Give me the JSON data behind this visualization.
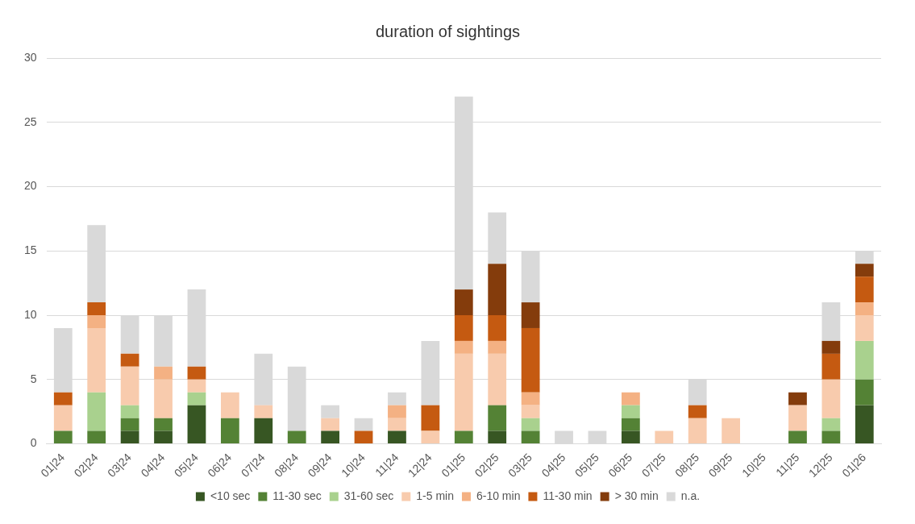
{
  "chart_data": {
    "type": "bar",
    "title": "duration of sightings",
    "stacked": true,
    "categories": [
      "01|24",
      "02|24",
      "03|24",
      "04|24",
      "05|24",
      "06|24",
      "07|24",
      "08|24",
      "09|24",
      "10|24",
      "11|24",
      "12|24",
      "01|25",
      "02|25",
      "03|25",
      "04|25",
      "05|25",
      "06|25",
      "07|25",
      "08|25",
      "09|25",
      "10|25",
      "11|25",
      "12|25",
      "01|26"
    ],
    "series": [
      {
        "name": "<10 sec",
        "color": "#375623",
        "values": [
          0,
          0,
          1,
          1,
          3,
          0,
          2,
          0,
          1,
          0,
          1,
          0,
          0,
          1,
          0,
          0,
          0,
          1,
          0,
          0,
          0,
          0,
          0,
          0,
          3
        ]
      },
      {
        "name": "11-30 sec",
        "color": "#548235",
        "values": [
          1,
          1,
          1,
          1,
          0,
          2,
          0,
          1,
          0,
          0,
          0,
          0,
          1,
          2,
          1,
          0,
          0,
          1,
          0,
          0,
          0,
          0,
          1,
          1,
          2
        ]
      },
      {
        "name": "31-60 sec",
        "color": "#a9d18e",
        "values": [
          0,
          3,
          1,
          0,
          1,
          0,
          0,
          0,
          0,
          0,
          0,
          0,
          0,
          0,
          1,
          0,
          0,
          1,
          0,
          0,
          0,
          0,
          0,
          1,
          3
        ]
      },
      {
        "name": "1-5 min",
        "color": "#f8cbad",
        "values": [
          2,
          5,
          3,
          3,
          1,
          2,
          1,
          0,
          1,
          0,
          1,
          1,
          6,
          4,
          1,
          0,
          0,
          0,
          1,
          2,
          2,
          0,
          2,
          3,
          2
        ]
      },
      {
        "name": "6-10 min",
        "color": "#f4b183",
        "values": [
          0,
          1,
          0,
          1,
          0,
          0,
          0,
          0,
          0,
          0,
          1,
          0,
          1,
          1,
          1,
          0,
          0,
          1,
          0,
          0,
          0,
          0,
          0,
          0,
          1
        ]
      },
      {
        "name": "11-30 min",
        "color": "#c55a11",
        "values": [
          1,
          1,
          1,
          0,
          1,
          0,
          0,
          0,
          0,
          1,
          0,
          2,
          2,
          2,
          5,
          0,
          0,
          0,
          0,
          1,
          0,
          0,
          0,
          2,
          2
        ]
      },
      {
        "name": "> 30 min",
        "color": "#843c0c",
        "values": [
          0,
          0,
          0,
          0,
          0,
          0,
          0,
          0,
          0,
          0,
          0,
          0,
          2,
          4,
          2,
          0,
          0,
          0,
          0,
          0,
          0,
          0,
          1,
          1,
          1
        ]
      },
      {
        "name": "n.a.",
        "color": "#d9d9d9",
        "values": [
          5,
          6,
          3,
          4,
          6,
          0,
          4,
          5,
          1,
          1,
          1,
          5,
          15,
          4,
          4,
          1,
          1,
          0,
          0,
          2,
          0,
          0,
          0,
          3,
          1
        ]
      }
    ],
    "ylim": [
      0,
      30
    ],
    "yticks": [
      0,
      5,
      10,
      15,
      20,
      25,
      30
    ],
    "grid": "y",
    "legend": "bottom"
  }
}
